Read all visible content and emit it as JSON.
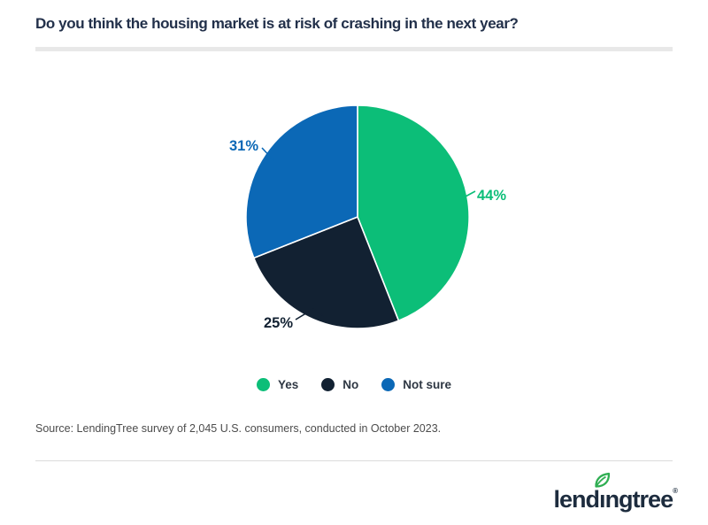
{
  "header": {
    "title": "Do you think the housing market is at risk of crashing in the next year?"
  },
  "chart_data": {
    "type": "pie",
    "title": "Do you think the housing market is at risk of crashing in the next year?",
    "slices": [
      {
        "label": "Yes",
        "value": 44,
        "display": "44%",
        "color": "#0cbe78"
      },
      {
        "label": "No",
        "value": 25,
        "display": "25%",
        "color": "#122132"
      },
      {
        "label": "Not sure",
        "value": 31,
        "display": "31%",
        "color": "#0b68b6"
      }
    ],
    "total": 100,
    "start_angle_deg": 0,
    "direction": "clockwise",
    "slice_separator_color": "#ffffff",
    "labels_outside": true,
    "legend": {
      "position": "bottom",
      "entries": [
        "Yes",
        "No",
        "Not sure"
      ]
    }
  },
  "footer": {
    "source": "Source: LendingTree survey of 2,045 U.S. consumers, conducted in October 2023.",
    "brand": {
      "logo_text": "lendingtree",
      "registered_mark": "®",
      "leaf_color": "#2fae52",
      "text_color": "#1d2c3e"
    }
  },
  "style": {
    "background": "#ffffff",
    "title_color": "#22304a",
    "title_rule_color": "#e8e8e8",
    "legend_text_color": "#2e3743",
    "source_text_color": "#4c4c4c",
    "divider_color": "#dcdcdc"
  }
}
